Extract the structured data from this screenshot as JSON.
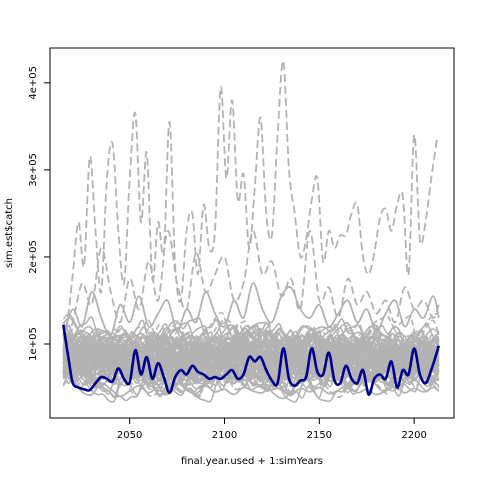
{
  "chart_data": {
    "type": "line",
    "title": "",
    "xlabel": "final.year.used + 1:simYears",
    "ylabel": "sim.est$catch",
    "xlim": [
      2008,
      2221
    ],
    "ylim": [
      15000,
      440000
    ],
    "x_ticks": [
      2050,
      2100,
      2150,
      2200
    ],
    "x_tick_labels": [
      "2050",
      "2100",
      "2150",
      "2200"
    ],
    "y_ticks": [
      100000,
      200000,
      300000,
      400000
    ],
    "y_tick_labels": [
      "1e+05",
      "2e+05",
      "3e+05",
      "4e+05"
    ],
    "grid": false,
    "legend": "none",
    "colors": {
      "sims": "#b3b3b3",
      "highlight": "#00008b"
    },
    "x_start": 2015,
    "x_end": 2213,
    "series": [
      {
        "style": "highlight",
        "x": [
          2015,
          2018,
          2020,
          2023,
          2026,
          2029,
          2032,
          2035,
          2038,
          2041,
          2044,
          2047,
          2050,
          2053,
          2056,
          2059,
          2062,
          2065,
          2068,
          2071,
          2074,
          2077,
          2080,
          2083,
          2086,
          2089,
          2092,
          2095,
          2098,
          2101,
          2104,
          2107,
          2110,
          2113,
          2116,
          2119,
          2122,
          2125,
          2128,
          2131,
          2134,
          2137,
          2140,
          2143,
          2146,
          2149,
          2152,
          2155,
          2158,
          2161,
          2164,
          2167,
          2170,
          2173,
          2176,
          2179,
          2182,
          2185,
          2188,
          2191,
          2194,
          2197,
          2200,
          2203,
          2206,
          2209,
          2213
        ],
        "values": [
          122000,
          80000,
          55000,
          50000,
          48000,
          47000,
          55000,
          62000,
          60000,
          57000,
          72000,
          60000,
          56000,
          93000,
          65000,
          85000,
          60000,
          78000,
          62000,
          44000,
          62000,
          70000,
          65000,
          75000,
          68000,
          65000,
          60000,
          62000,
          60000,
          65000,
          70000,
          60000,
          65000,
          85000,
          80000,
          85000,
          70000,
          58000,
          55000,
          95000,
          60000,
          52000,
          58000,
          62000,
          95000,
          68000,
          65000,
          90000,
          58000,
          55000,
          75000,
          60000,
          55000,
          70000,
          42000,
          60000,
          65000,
          60000,
          80000,
          50000,
          70000,
          65000,
          95000,
          65000,
          55000,
          70000,
          98000
        ]
      },
      {
        "style": "dashed",
        "x": [
          2015,
          2018,
          2020,
          2023,
          2026,
          2029,
          2032,
          2035,
          2038,
          2041,
          2044,
          2047,
          2050,
          2053,
          2056,
          2059,
          2062,
          2065,
          2068,
          2071,
          2074,
          2077,
          2080,
          2083,
          2086,
          2089,
          2092,
          2095,
          2098,
          2101,
          2104,
          2107,
          2110,
          2113,
          2116,
          2119,
          2122,
          2125,
          2128,
          2131,
          2134,
          2137,
          2140,
          2143,
          2146,
          2149,
          2152,
          2155,
          2158,
          2161,
          2164,
          2167,
          2170,
          2173,
          2176,
          2179,
          2182,
          2185,
          2188,
          2191,
          2194,
          2197,
          2200,
          2203,
          2206,
          2209,
          2212
        ],
        "values": [
          90000,
          140000,
          180000,
          240000,
          190000,
          315000,
          230000,
          160000,
          290000,
          330000,
          230000,
          170000,
          290000,
          365000,
          240000,
          320000,
          175000,
          240000,
          205000,
          355000,
          190000,
          150000,
          230000,
          250000,
          180000,
          260000,
          210000,
          230000,
          395000,
          290000,
          380000,
          265000,
          295000,
          210000,
          280000,
          360000,
          250000,
          225000,
          340000,
          425000,
          300000,
          250000,
          200000,
          220000,
          265000,
          290000,
          195000,
          230000,
          210000,
          225000,
          225000,
          250000,
          260000,
          200000,
          180000,
          205000,
          245000,
          255000,
          230000,
          260000,
          270000,
          180000,
          340000,
          220000,
          240000,
          290000,
          335000
        ]
      },
      {
        "style": "dashed",
        "x": [
          2015,
          2020,
          2025,
          2030,
          2035,
          2040,
          2045,
          2050,
          2055,
          2060,
          2065,
          2070,
          2075,
          2080,
          2085,
          2090,
          2095,
          2100,
          2105,
          2110,
          2115,
          2120,
          2125,
          2130,
          2135,
          2140,
          2145,
          2150,
          2155,
          2160,
          2165,
          2170,
          2175,
          2180,
          2185,
          2190,
          2195,
          2200,
          2205,
          2210,
          2213
        ],
        "values": [
          95000,
          125000,
          170000,
          145000,
          210000,
          160000,
          125000,
          175000,
          140000,
          195000,
          150000,
          230000,
          170000,
          140000,
          205000,
          160000,
          180000,
          200000,
          150000,
          170000,
          230000,
          180000,
          195000,
          155000,
          175000,
          140000,
          230000,
          150000,
          165000,
          130000,
          175000,
          145000,
          160000,
          135000,
          150000,
          125000,
          165000,
          140000,
          150000,
          130000,
          145000
        ]
      },
      {
        "style": "solid",
        "x": [
          2015,
          2020,
          2025,
          2030,
          2035,
          2040,
          2045,
          2050,
          2055,
          2060,
          2065,
          2070,
          2075,
          2080,
          2085,
          2090,
          2095,
          2100,
          2105,
          2110,
          2115,
          2120,
          2125,
          2130,
          2135,
          2140,
          2145,
          2150,
          2155,
          2160,
          2165,
          2170,
          2175,
          2180,
          2185,
          2190,
          2195,
          2200,
          2205,
          2210,
          2213
        ],
        "values": [
          110000,
          140000,
          120000,
          160000,
          130000,
          110000,
          145000,
          125000,
          155000,
          120000,
          135000,
          150000,
          115000,
          140000,
          125000,
          160000,
          135000,
          120000,
          150000,
          130000,
          170000,
          140000,
          125000,
          155000,
          165000,
          140000,
          130000,
          145000,
          120000,
          135000,
          150000,
          125000,
          140000,
          115000,
          135000,
          150000,
          120000,
          140000,
          130000,
          155000,
          130000
        ]
      },
      {
        "style": "solid",
        "x": [
          2015,
          2020,
          2025,
          2030,
          2035,
          2040,
          2045,
          2050,
          2055,
          2060,
          2065,
          2070,
          2075,
          2080,
          2085,
          2090,
          2095,
          2100,
          2105,
          2110,
          2115,
          2120,
          2125,
          2130,
          2135,
          2140,
          2145,
          2150,
          2155,
          2160,
          2165,
          2170,
          2175,
          2180,
          2185,
          2190,
          2195,
          2200,
          2205,
          2210,
          2213
        ],
        "values": [
          80000,
          60000,
          45000,
          42000,
          55000,
          48000,
          40000,
          46000,
          52000,
          44000,
          50000,
          42000,
          55000,
          47000,
          43000,
          52000,
          45000,
          48000,
          42000,
          50000,
          46000,
          44000,
          52000,
          47000,
          41000,
          49000,
          45000,
          50000,
          43000,
          47000,
          52000,
          44000,
          48000,
          42000,
          46000,
          51000,
          44000,
          49000,
          45000,
          50000,
          47000
        ]
      }
    ]
  }
}
